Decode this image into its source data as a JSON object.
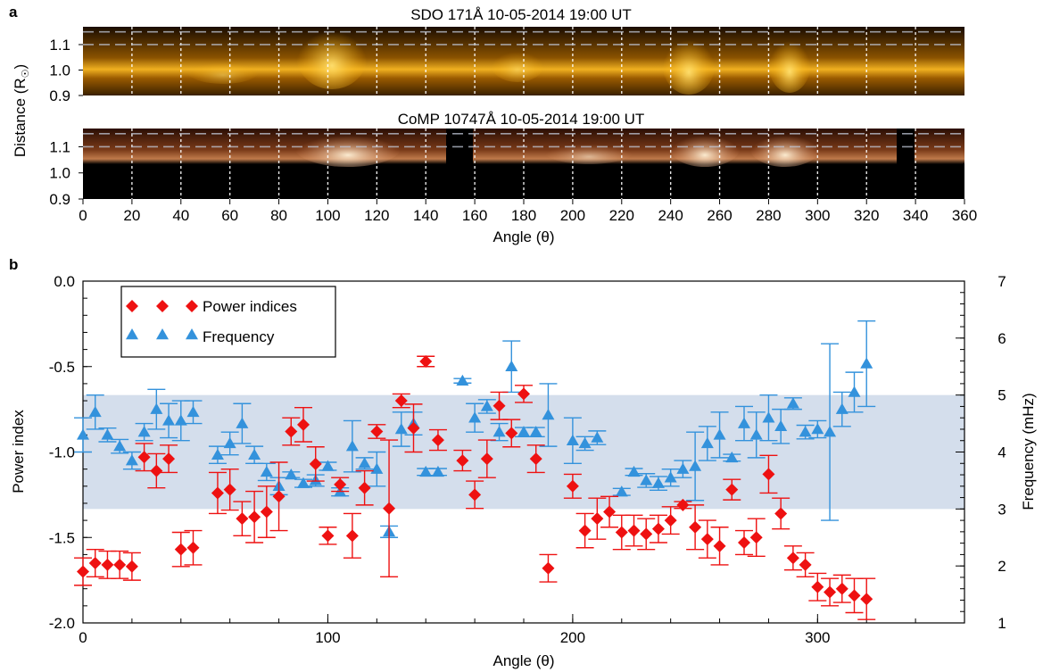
{
  "panel_a": {
    "label": "a",
    "ylabel": "Distance (R",
    "ylabel_sub": "☉",
    "ylabel_close": ")",
    "xlabel": "Angle (θ)",
    "x_ticks": [
      0,
      20,
      40,
      60,
      80,
      100,
      120,
      140,
      160,
      180,
      200,
      220,
      240,
      260,
      280,
      300,
      320,
      340,
      360
    ],
    "y_ticks": [
      "1.1",
      "1.0",
      "0.9"
    ],
    "images": [
      {
        "title": "SDO 171Å 10-05-2014 19:00 UT",
        "colors": {
          "dark": "#2a1600",
          "mid": "#b87400",
          "bright": "#ffd65a"
        }
      },
      {
        "title": "CoMP 10747Å 10-05-2014 19:00 UT",
        "colors": {
          "dark": "#000000",
          "mid": "#6a2f12",
          "bright": "#ffe9c4"
        }
      }
    ]
  },
  "panel_b": {
    "label": "b",
    "colors": {
      "power": "#ee1111",
      "frequency": "#3392dc",
      "band": "#d4deec"
    }
  },
  "chart_data": {
    "type": "scatter",
    "xlabel": "Angle (θ)",
    "ylabel": "Power index",
    "y2label": "Frequency (mHz)",
    "xlim": [
      0,
      360
    ],
    "ylim": [
      -2.0,
      0.0
    ],
    "y2lim": [
      1,
      7
    ],
    "x_ticks": [
      0,
      100,
      200,
      300
    ],
    "y_ticks": [
      "0.0",
      "-0.5",
      "-1.0",
      "-1.5",
      "-2.0"
    ],
    "y2_ticks": [
      "7",
      "6",
      "5",
      "4",
      "3",
      "2",
      "1"
    ],
    "shaded_band_frequency": [
      3,
      5
    ],
    "legend": {
      "position": "top-left",
      "entries": [
        "Power indices",
        "Frequency"
      ]
    },
    "series": [
      {
        "name": "Power indices",
        "marker": "diamond",
        "points": [
          {
            "x": 0,
            "y": -1.7,
            "err": 0.08
          },
          {
            "x": 5,
            "y": -1.65,
            "err": 0.08
          },
          {
            "x": 10,
            "y": -1.66,
            "err": 0.08
          },
          {
            "x": 15,
            "y": -1.66,
            "err": 0.08
          },
          {
            "x": 20,
            "y": -1.67,
            "err": 0.08
          },
          {
            "x": 25,
            "y": -1.03,
            "err": 0.08
          },
          {
            "x": 30,
            "y": -1.11,
            "err": 0.1
          },
          {
            "x": 35,
            "y": -1.04,
            "err": 0.08
          },
          {
            "x": 40,
            "y": -1.57,
            "err": 0.1
          },
          {
            "x": 45,
            "y": -1.56,
            "err": 0.1
          },
          {
            "x": 55,
            "y": -1.24,
            "err": 0.12
          },
          {
            "x": 60,
            "y": -1.22,
            "err": 0.12
          },
          {
            "x": 65,
            "y": -1.39,
            "err": 0.1
          },
          {
            "x": 70,
            "y": -1.38,
            "err": 0.15
          },
          {
            "x": 75,
            "y": -1.35,
            "err": 0.15
          },
          {
            "x": 80,
            "y": -1.26,
            "err": 0.2
          },
          {
            "x": 85,
            "y": -0.88,
            "err": 0.08
          },
          {
            "x": 90,
            "y": -0.84,
            "err": 0.1
          },
          {
            "x": 95,
            "y": -1.07,
            "err": 0.1
          },
          {
            "x": 100,
            "y": -1.49,
            "err": 0.05
          },
          {
            "x": 105,
            "y": -1.19,
            "err": 0.04
          },
          {
            "x": 110,
            "y": -1.49,
            "err": 0.13
          },
          {
            "x": 115,
            "y": -1.21,
            "err": 0.1
          },
          {
            "x": 120,
            "y": -0.88,
            "err": 0.04
          },
          {
            "x": 125,
            "y": -1.33,
            "err": 0.4
          },
          {
            "x": 130,
            "y": -0.7,
            "err": 0.04
          },
          {
            "x": 135,
            "y": -0.86,
            "err": 0.14
          },
          {
            "x": 140,
            "y": -0.47,
            "err": 0.03
          },
          {
            "x": 145,
            "y": -0.93,
            "err": 0.06
          },
          {
            "x": 155,
            "y": -1.05,
            "err": 0.06
          },
          {
            "x": 160,
            "y": -1.25,
            "err": 0.08
          },
          {
            "x": 165,
            "y": -1.04,
            "err": 0.11
          },
          {
            "x": 170,
            "y": -0.73,
            "err": 0.08
          },
          {
            "x": 175,
            "y": -0.89,
            "err": 0.08
          },
          {
            "x": 180,
            "y": -0.66,
            "err": 0.05
          },
          {
            "x": 185,
            "y": -1.04,
            "err": 0.08
          },
          {
            "x": 190,
            "y": -1.68,
            "err": 0.08
          },
          {
            "x": 200,
            "y": -1.2,
            "err": 0.07
          },
          {
            "x": 205,
            "y": -1.46,
            "err": 0.1
          },
          {
            "x": 210,
            "y": -1.39,
            "err": 0.12
          },
          {
            "x": 215,
            "y": -1.35,
            "err": 0.09
          },
          {
            "x": 220,
            "y": -1.47,
            "err": 0.1
          },
          {
            "x": 225,
            "y": -1.46,
            "err": 0.09
          },
          {
            "x": 230,
            "y": -1.48,
            "err": 0.09
          },
          {
            "x": 235,
            "y": -1.45,
            "err": 0.08
          },
          {
            "x": 240,
            "y": -1.4,
            "err": 0.08
          },
          {
            "x": 245,
            "y": -1.31,
            "err": 0.02
          },
          {
            "x": 250,
            "y": -1.44,
            "err": 0.13
          },
          {
            "x": 255,
            "y": -1.51,
            "err": 0.11
          },
          {
            "x": 260,
            "y": -1.55,
            "err": 0.11
          },
          {
            "x": 265,
            "y": -1.22,
            "err": 0.06
          },
          {
            "x": 270,
            "y": -1.53,
            "err": 0.07
          },
          {
            "x": 275,
            "y": -1.5,
            "err": 0.11
          },
          {
            "x": 280,
            "y": -1.13,
            "err": 0.11
          },
          {
            "x": 285,
            "y": -1.36,
            "err": 0.09
          },
          {
            "x": 290,
            "y": -1.62,
            "err": 0.07
          },
          {
            "x": 295,
            "y": -1.66,
            "err": 0.07
          },
          {
            "x": 300,
            "y": -1.79,
            "err": 0.08
          },
          {
            "x": 305,
            "y": -1.82,
            "err": 0.08
          },
          {
            "x": 310,
            "y": -1.8,
            "err": 0.08
          },
          {
            "x": 315,
            "y": -1.84,
            "err": 0.1
          },
          {
            "x": 320,
            "y": -1.86,
            "err": 0.12
          }
        ]
      },
      {
        "name": "Frequency",
        "marker": "triangle",
        "axis": "right",
        "points": [
          {
            "x": 0,
            "y": 4.3,
            "err": 0.3
          },
          {
            "x": 5,
            "y": 4.7,
            "err": 0.3
          },
          {
            "x": 10,
            "y": 4.3,
            "err": 0.12
          },
          {
            "x": 15,
            "y": 4.1,
            "err": 0.12
          },
          {
            "x": 20,
            "y": 3.85,
            "err": 0.15
          },
          {
            "x": 25,
            "y": 4.35,
            "err": 0.15
          },
          {
            "x": 30,
            "y": 4.75,
            "err": 0.35
          },
          {
            "x": 35,
            "y": 4.55,
            "err": 0.3
          },
          {
            "x": 40,
            "y": 4.55,
            "err": 0.35
          },
          {
            "x": 45,
            "y": 4.7,
            "err": 0.2
          },
          {
            "x": 55,
            "y": 3.95,
            "err": 0.15
          },
          {
            "x": 60,
            "y": 4.15,
            "err": 0.2
          },
          {
            "x": 65,
            "y": 4.5,
            "err": 0.35
          },
          {
            "x": 70,
            "y": 3.95,
            "err": 0.15
          },
          {
            "x": 75,
            "y": 3.65,
            "err": 0.15
          },
          {
            "x": 80,
            "y": 3.4,
            "err": 0.15
          },
          {
            "x": 85,
            "y": 3.6,
            "err": 0.05
          },
          {
            "x": 90,
            "y": 3.45,
            "err": 0.07
          },
          {
            "x": 95,
            "y": 3.5,
            "err": 0.1
          },
          {
            "x": 100,
            "y": 3.75,
            "err": 0.07
          },
          {
            "x": 105,
            "y": 3.3,
            "err": 0.07
          },
          {
            "x": 110,
            "y": 4.1,
            "err": 0.45
          },
          {
            "x": 115,
            "y": 3.8,
            "err": 0.1
          },
          {
            "x": 120,
            "y": 3.7,
            "err": 0.3
          },
          {
            "x": 125,
            "y": 2.6,
            "err": 0.1
          },
          {
            "x": 130,
            "y": 4.4,
            "err": 0.3
          },
          {
            "x": 135,
            "y": 4.5,
            "err": 0.2
          },
          {
            "x": 140,
            "y": 3.65,
            "err": 0.06
          },
          {
            "x": 145,
            "y": 3.65,
            "err": 0.06
          },
          {
            "x": 155,
            "y": 5.25,
            "err": 0.04
          },
          {
            "x": 160,
            "y": 4.6,
            "err": 0.25
          },
          {
            "x": 165,
            "y": 4.8,
            "err": 0.12
          },
          {
            "x": 170,
            "y": 4.35,
            "err": 0.15
          },
          {
            "x": 175,
            "y": 5.5,
            "err": 0.45
          },
          {
            "x": 180,
            "y": 4.35,
            "err": 0.08
          },
          {
            "x": 185,
            "y": 4.35,
            "err": 0.08
          },
          {
            "x": 190,
            "y": 4.65,
            "err": 0.55
          },
          {
            "x": 200,
            "y": 4.2,
            "err": 0.4
          },
          {
            "x": 205,
            "y": 4.15,
            "err": 0.12
          },
          {
            "x": 210,
            "y": 4.25,
            "err": 0.12
          },
          {
            "x": 220,
            "y": 3.3,
            "err": 0.06
          },
          {
            "x": 225,
            "y": 3.65,
            "err": 0.06
          },
          {
            "x": 230,
            "y": 3.5,
            "err": 0.12
          },
          {
            "x": 235,
            "y": 3.45,
            "err": 0.12
          },
          {
            "x": 240,
            "y": 3.55,
            "err": 0.15
          },
          {
            "x": 245,
            "y": 3.7,
            "err": 0.15
          },
          {
            "x": 250,
            "y": 3.75,
            "err": 0.6
          },
          {
            "x": 255,
            "y": 4.15,
            "err": 0.3
          },
          {
            "x": 260,
            "y": 4.3,
            "err": 0.4
          },
          {
            "x": 265,
            "y": 3.9,
            "err": 0.06
          },
          {
            "x": 270,
            "y": 4.5,
            "err": 0.3
          },
          {
            "x": 275,
            "y": 4.3,
            "err": 0.4
          },
          {
            "x": 280,
            "y": 4.6,
            "err": 0.4
          },
          {
            "x": 285,
            "y": 4.45,
            "err": 0.3
          },
          {
            "x": 290,
            "y": 4.85,
            "err": 0.1
          },
          {
            "x": 295,
            "y": 4.35,
            "err": 0.12
          },
          {
            "x": 300,
            "y": 4.4,
            "err": 0.15
          },
          {
            "x": 305,
            "y": 4.35,
            "err": 1.55
          },
          {
            "x": 310,
            "y": 4.75,
            "err": 0.3
          },
          {
            "x": 315,
            "y": 5.05,
            "err": 0.35
          },
          {
            "x": 320,
            "y": 5.55,
            "err": 0.75
          }
        ]
      }
    ]
  }
}
